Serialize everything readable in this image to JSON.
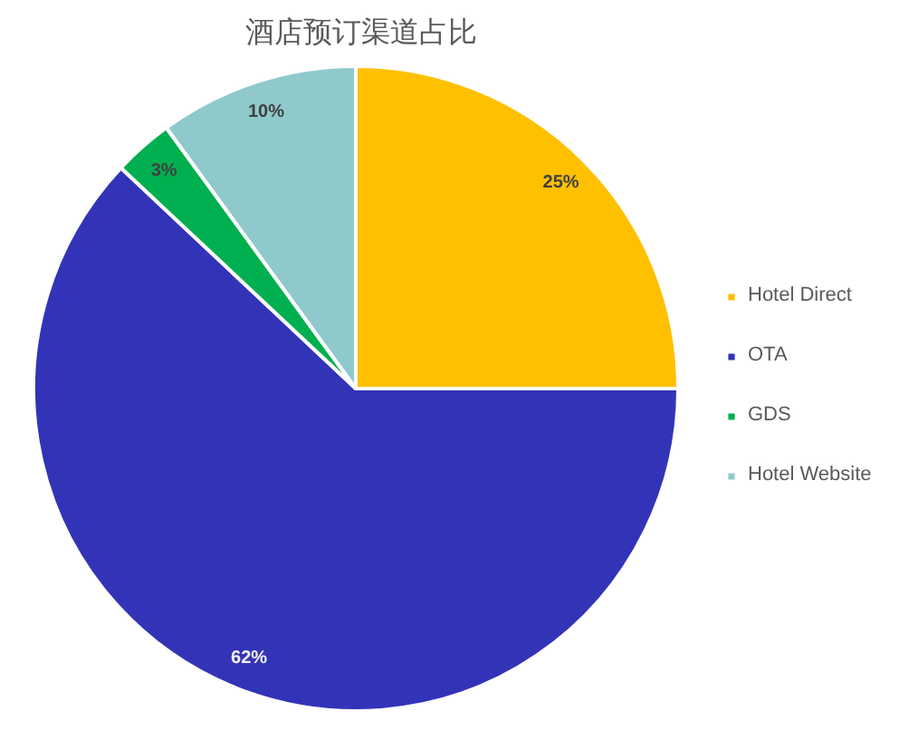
{
  "chart_data": {
    "type": "pie",
    "title": "酒店预订渠道占比",
    "categories": [
      "Hotel Direct",
      "OTA",
      "GDS",
      "Hotel Website"
    ],
    "values": [
      25,
      62,
      3,
      10
    ],
    "colors": [
      "#ffc000",
      "#3333b8",
      "#00b050",
      "#8fc9cc"
    ],
    "value_labels": [
      "25%",
      "62%",
      "3%",
      "10%"
    ],
    "legend": "right"
  }
}
